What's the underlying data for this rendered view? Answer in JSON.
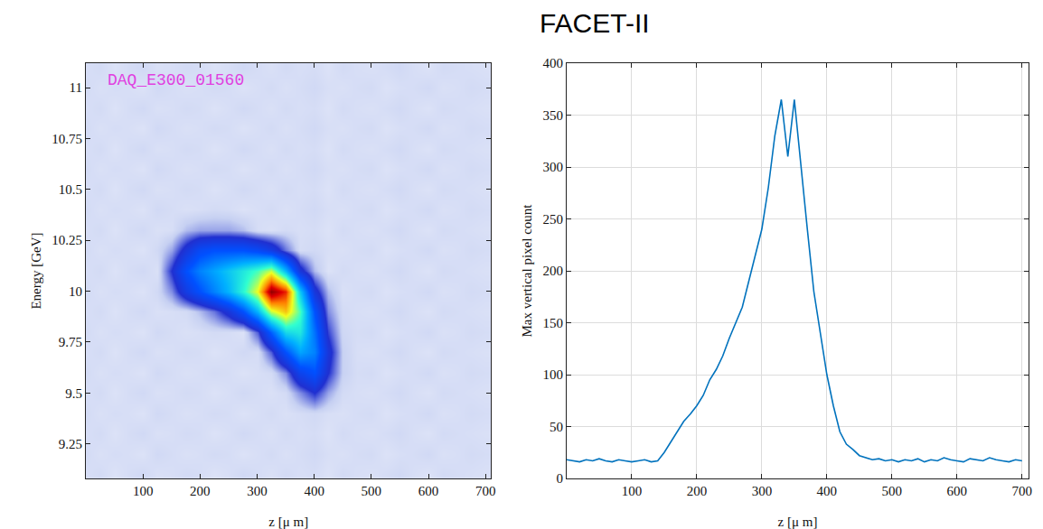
{
  "title": "FACET-II",
  "chart_data": [
    {
      "type": "heatmap",
      "x_label": "z [μ m]",
      "y_label": "Energy [GeV]",
      "annotations": [
        "DAQ_E300_01560"
      ],
      "x": [
        0,
        25,
        50,
        75,
        100,
        125,
        150,
        175,
        200,
        225,
        250,
        275,
        300,
        325,
        350,
        375,
        400,
        425,
        450,
        475,
        500,
        525,
        550,
        575,
        600,
        625,
        650,
        675,
        700
      ],
      "y": [
        9.1,
        9.2,
        9.3,
        9.4,
        9.5,
        9.6,
        9.7,
        9.8,
        9.9,
        10.0,
        10.1,
        10.2,
        10.3,
        10.4,
        10.5,
        10.6,
        10.7,
        10.8,
        10.9,
        11.0,
        11.1
      ],
      "z": [
        [
          18,
          20,
          16,
          19,
          21,
          17,
          18,
          20,
          19,
          16,
          18,
          21,
          19,
          17,
          20,
          18,
          19,
          16,
          20,
          18,
          17,
          19,
          21,
          18,
          16,
          20,
          19,
          18,
          17
        ],
        [
          20,
          17,
          19,
          18,
          16,
          21,
          19,
          17,
          18,
          20,
          19,
          16,
          18,
          20,
          17,
          19,
          21,
          18,
          17,
          19,
          20,
          16,
          18,
          19,
          21,
          17,
          18,
          20,
          19
        ],
        [
          18,
          20,
          16,
          19,
          21,
          17,
          18,
          20,
          19,
          16,
          18,
          21,
          19,
          17,
          20,
          18,
          19,
          16,
          20,
          18,
          17,
          19,
          21,
          18,
          16,
          20,
          19,
          18,
          17
        ],
        [
          20,
          17,
          19,
          18,
          16,
          21,
          19,
          17,
          18,
          20,
          19,
          16,
          18,
          20,
          17,
          19,
          21,
          18,
          17,
          19,
          20,
          16,
          18,
          19,
          21,
          17,
          18,
          20,
          19
        ],
        [
          18,
          20,
          16,
          19,
          21,
          17,
          18,
          20,
          19,
          16,
          18,
          21,
          19,
          17,
          20,
          40,
          60,
          35,
          20,
          18,
          17,
          19,
          21,
          18,
          16,
          20,
          19,
          18,
          17
        ],
        [
          20,
          17,
          19,
          18,
          16,
          21,
          19,
          17,
          18,
          20,
          19,
          16,
          18,
          20,
          40,
          90,
          110,
          60,
          25,
          19,
          20,
          16,
          18,
          19,
          21,
          17,
          18,
          20,
          19
        ],
        [
          18,
          20,
          16,
          19,
          21,
          17,
          18,
          20,
          19,
          16,
          18,
          21,
          19,
          50,
          110,
          160,
          140,
          70,
          25,
          18,
          17,
          19,
          21,
          18,
          16,
          20,
          19,
          18,
          17
        ],
        [
          20,
          17,
          19,
          18,
          16,
          21,
          19,
          17,
          18,
          20,
          19,
          16,
          50,
          120,
          190,
          200,
          130,
          55,
          22,
          19,
          20,
          16,
          18,
          19,
          21,
          17,
          18,
          20,
          19
        ],
        [
          18,
          20,
          16,
          19,
          21,
          17,
          18,
          20,
          30,
          45,
          70,
          110,
          170,
          250,
          280,
          220,
          110,
          40,
          20,
          18,
          17,
          19,
          21,
          18,
          16,
          20,
          19,
          18,
          17
        ],
        [
          20,
          17,
          19,
          18,
          16,
          21,
          40,
          80,
          110,
          140,
          170,
          210,
          260,
          370,
          330,
          180,
          70,
          30,
          17,
          19,
          20,
          16,
          18,
          19,
          21,
          17,
          18,
          20,
          19
        ],
        [
          18,
          20,
          16,
          19,
          21,
          17,
          60,
          110,
          140,
          160,
          180,
          200,
          220,
          250,
          170,
          70,
          30,
          16,
          20,
          18,
          17,
          19,
          21,
          18,
          16,
          20,
          19,
          18,
          17
        ],
        [
          20,
          17,
          19,
          18,
          16,
          21,
          35,
          70,
          100,
          110,
          110,
          110,
          100,
          80,
          45,
          19,
          21,
          18,
          17,
          19,
          20,
          16,
          18,
          19,
          21,
          17,
          18,
          20,
          19
        ],
        [
          18,
          20,
          16,
          19,
          21,
          17,
          18,
          30,
          35,
          35,
          35,
          30,
          19,
          17,
          20,
          18,
          19,
          16,
          20,
          18,
          17,
          19,
          21,
          18,
          16,
          20,
          19,
          18,
          17
        ],
        [
          20,
          17,
          19,
          18,
          16,
          21,
          19,
          17,
          18,
          20,
          19,
          16,
          18,
          20,
          17,
          19,
          21,
          18,
          17,
          19,
          20,
          16,
          18,
          19,
          21,
          17,
          18,
          20,
          19
        ],
        [
          18,
          20,
          16,
          19,
          21,
          17,
          18,
          20,
          19,
          16,
          18,
          21,
          19,
          17,
          20,
          18,
          19,
          16,
          20,
          18,
          17,
          19,
          21,
          18,
          16,
          20,
          19,
          18,
          17
        ],
        [
          20,
          17,
          19,
          18,
          16,
          21,
          19,
          17,
          18,
          20,
          19,
          16,
          18,
          20,
          17,
          19,
          21,
          18,
          17,
          19,
          20,
          16,
          18,
          19,
          21,
          17,
          18,
          20,
          19
        ],
        [
          18,
          20,
          16,
          19,
          21,
          17,
          18,
          20,
          19,
          16,
          18,
          21,
          19,
          17,
          20,
          18,
          19,
          16,
          20,
          18,
          17,
          19,
          21,
          18,
          16,
          20,
          19,
          18,
          17
        ],
        [
          20,
          17,
          19,
          18,
          16,
          21,
          19,
          17,
          18,
          20,
          19,
          16,
          18,
          20,
          17,
          19,
          21,
          18,
          17,
          19,
          20,
          16,
          18,
          19,
          21,
          17,
          18,
          20,
          19
        ],
        [
          18,
          20,
          16,
          19,
          21,
          17,
          18,
          20,
          19,
          16,
          18,
          21,
          19,
          17,
          20,
          18,
          19,
          16,
          20,
          18,
          17,
          19,
          21,
          18,
          16,
          20,
          19,
          18,
          17
        ],
        [
          20,
          17,
          19,
          18,
          16,
          21,
          19,
          17,
          18,
          20,
          19,
          16,
          18,
          20,
          17,
          19,
          21,
          18,
          17,
          19,
          20,
          16,
          18,
          19,
          21,
          17,
          18,
          20,
          19
        ],
        [
          18,
          20,
          16,
          19,
          21,
          17,
          18,
          20,
          19,
          16,
          18,
          21,
          19,
          17,
          20,
          18,
          19,
          16,
          20,
          18,
          17,
          19,
          21,
          18,
          16,
          20,
          19,
          18,
          17
        ]
      ],
      "zlim": [
        0,
        370
      ],
      "xlim": [
        0,
        710
      ],
      "xticks": [
        100,
        200,
        300,
        400,
        500,
        600,
        700
      ],
      "ylim": [
        9.08,
        11.12
      ],
      "yticks": [
        9.25,
        9.5,
        9.75,
        10,
        10.25,
        10.5,
        10.75,
        11
      ],
      "grid": false
    },
    {
      "type": "line",
      "x_label": "z [μ m]",
      "y_label": "Max vertical pixel count",
      "color": "#0072bd",
      "x": [
        0,
        10,
        20,
        30,
        40,
        50,
        60,
        70,
        80,
        90,
        100,
        110,
        120,
        130,
        140,
        150,
        160,
        170,
        180,
        190,
        200,
        210,
        220,
        230,
        240,
        250,
        260,
        270,
        280,
        290,
        300,
        310,
        320,
        330,
        340,
        350,
        360,
        370,
        380,
        390,
        400,
        410,
        420,
        430,
        440,
        450,
        460,
        470,
        480,
        490,
        500,
        510,
        520,
        530,
        540,
        550,
        560,
        570,
        580,
        590,
        600,
        610,
        620,
        630,
        640,
        650,
        660,
        670,
        680,
        690,
        700
      ],
      "values": [
        18,
        17,
        16,
        18,
        17,
        19,
        17,
        16,
        18,
        17,
        16,
        17,
        18,
        16,
        17,
        25,
        35,
        45,
        55,
        62,
        70,
        80,
        95,
        105,
        118,
        135,
        150,
        165,
        190,
        215,
        240,
        280,
        330,
        365,
        310,
        365,
        300,
        240,
        180,
        140,
        100,
        70,
        45,
        33,
        28,
        22,
        20,
        18,
        19,
        17,
        18,
        16,
        18,
        17,
        19,
        16,
        18,
        17,
        20,
        18,
        17,
        16,
        19,
        18,
        17,
        20,
        18,
        17,
        16,
        18,
        17
      ],
      "xlim": [
        0,
        710
      ],
      "xticks": [
        100,
        200,
        300,
        400,
        500,
        600,
        700
      ],
      "ylim": [
        0,
        400
      ],
      "yticks": [
        0,
        50,
        100,
        150,
        200,
        250,
        300,
        350,
        400
      ],
      "grid": true
    }
  ]
}
